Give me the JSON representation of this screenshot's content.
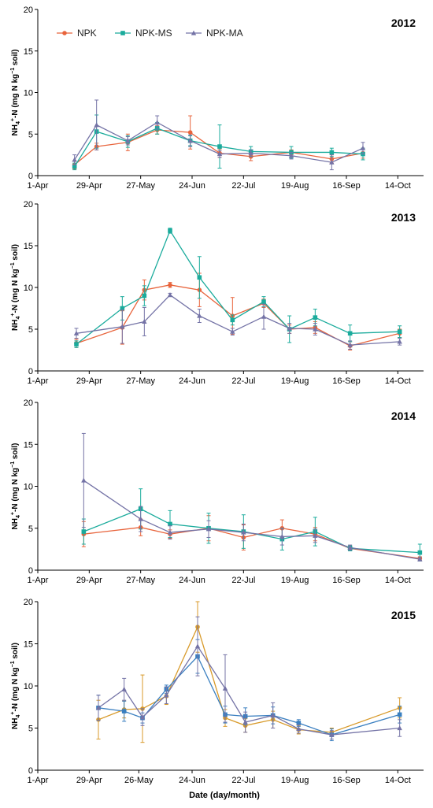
{
  "figure": {
    "xlabel": "Date (day/month)",
    "ylabel_main": "NH",
    "ylabel_sub": "4",
    "ylabel_sup": "+",
    "ylabel_mid": "-N (mg N kg",
    "ylabel_sup2": "−1",
    "ylabel_end": " soil)"
  },
  "legend": {
    "items": [
      {
        "name": "NPK",
        "color": "#e8643c",
        "marker": "circle"
      },
      {
        "name": "NPK-MS",
        "color": "#1aab9c",
        "marker": "square"
      },
      {
        "name": "NPK-MA",
        "color": "#7473a6",
        "marker": "triangle"
      }
    ]
  },
  "chart_data": [
    {
      "type": "line",
      "title": "2012",
      "xlabel": "",
      "ylabel": "NH4+-N (mg N kg−1 soil)",
      "ylim": [
        0,
        20
      ],
      "yticks": [
        0,
        5,
        10,
        15,
        20
      ],
      "xlim": [
        0,
        210
      ],
      "xticks": [
        {
          "x": 0,
          "label": "1-Apr"
        },
        {
          "x": 28,
          "label": "29-Apr"
        },
        {
          "x": 56,
          "label": "27-May"
        },
        {
          "x": 84,
          "label": "24-Jun"
        },
        {
          "x": 112,
          "label": "22-Jul"
        },
        {
          "x": 140,
          "label": "19-Aug"
        },
        {
          "x": 168,
          "label": "16-Sep"
        },
        {
          "x": 196,
          "label": "14-Oct"
        }
      ],
      "legend": true,
      "series": [
        {
          "name": "NPK",
          "color": "#e8643c",
          "marker": "circle",
          "x": [
            20,
            32,
            49,
            65,
            83,
            99,
            116,
            138,
            160,
            177
          ],
          "y": [
            1.3,
            3.5,
            4.0,
            5.5,
            5.2,
            2.7,
            2.3,
            2.8,
            2.0,
            2.7
          ],
          "err": [
            0.5,
            0.4,
            1.0,
            0.5,
            2.0,
            0.5,
            0.5,
            0.3,
            0.5,
            0.6
          ]
        },
        {
          "name": "NPK-MS",
          "color": "#1aab9c",
          "marker": "square",
          "x": [
            20,
            32,
            49,
            65,
            83,
            99,
            116,
            138,
            160,
            177
          ],
          "y": [
            1.1,
            5.3,
            4.1,
            5.7,
            4.2,
            3.5,
            2.9,
            2.8,
            2.8,
            2.6
          ],
          "err": [
            0.4,
            2.0,
            0.7,
            0.7,
            0.6,
            2.6,
            0.6,
            0.7,
            0.5,
            0.7
          ]
        },
        {
          "name": "NPK-MA",
          "color": "#7473a6",
          "marker": "triangle",
          "x": [
            20,
            32,
            49,
            65,
            83,
            99,
            116,
            138,
            160,
            177
          ],
          "y": [
            1.9,
            6.1,
            4.2,
            6.4,
            4.2,
            2.6,
            2.7,
            2.4,
            1.6,
            3.3
          ],
          "err": [
            0.6,
            3.0,
            0.5,
            0.8,
            0.7,
            0.4,
            0.4,
            0.4,
            0.9,
            0.7
          ]
        }
      ]
    },
    {
      "type": "line",
      "title": "2013",
      "xlabel": "",
      "ylabel": "NH4+-N (mg N kg−1 soil)",
      "ylim": [
        0,
        20
      ],
      "yticks": [
        0,
        5,
        10,
        15,
        20
      ],
      "xlim": [
        0,
        210
      ],
      "xticks": [
        {
          "x": 0,
          "label": "1-Apr"
        },
        {
          "x": 28,
          "label": "29-Apr"
        },
        {
          "x": 56,
          "label": "27-May"
        },
        {
          "x": 84,
          "label": "24-Jun"
        },
        {
          "x": 112,
          "label": "22-Jul"
        },
        {
          "x": 140,
          "label": "19-Aug"
        },
        {
          "x": 168,
          "label": "16-Sep"
        },
        {
          "x": 196,
          "label": "14-Oct"
        }
      ],
      "legend": false,
      "series": [
        {
          "name": "NPK",
          "color": "#e8643c",
          "marker": "circle",
          "x": [
            21,
            46,
            58,
            72,
            88,
            106,
            123,
            137,
            151,
            170,
            197
          ],
          "y": [
            3.3,
            5.2,
            9.7,
            10.3,
            9.7,
            6.6,
            8.1,
            5.0,
            5.2,
            3.0,
            4.5
          ],
          "err": [
            0.5,
            2.0,
            1.2,
            0.3,
            2.0,
            2.2,
            0.5,
            0.5,
            0.7,
            0.5,
            0.5
          ]
        },
        {
          "name": "NPK-MS",
          "color": "#1aab9c",
          "marker": "square",
          "x": [
            21,
            46,
            58,
            72,
            88,
            106,
            123,
            137,
            151,
            170,
            197
          ],
          "y": [
            3.2,
            7.5,
            9.0,
            16.8,
            11.2,
            6.1,
            8.3,
            5.0,
            6.4,
            4.5,
            4.7
          ],
          "err": [
            0.4,
            1.4,
            1.2,
            0.3,
            2.5,
            0.6,
            0.6,
            1.6,
            1.0,
            1.0,
            0.7
          ]
        },
        {
          "name": "NPK-MA",
          "color": "#7473a6",
          "marker": "triangle",
          "x": [
            21,
            46,
            58,
            72,
            88,
            106,
            123,
            137,
            151,
            170,
            197
          ],
          "y": [
            4.5,
            5.3,
            5.9,
            9.1,
            6.6,
            4.7,
            6.5,
            5.1,
            5.0,
            3.1,
            3.5
          ],
          "err": [
            0.6,
            2.0,
            1.7,
            0.2,
            0.8,
            0.4,
            1.5,
            0.6,
            0.7,
            0.5,
            0.4
          ]
        }
      ]
    },
    {
      "type": "line",
      "title": "2014",
      "xlabel": "",
      "ylabel": "NH4+-N (mg N kg−1 soil)",
      "ylim": [
        0,
        20
      ],
      "yticks": [
        0,
        5,
        10,
        15,
        20
      ],
      "xlim": [
        0,
        210
      ],
      "xticks": [
        {
          "x": 0,
          "label": "1-Apr"
        },
        {
          "x": 28,
          "label": "29-Apr"
        },
        {
          "x": 56,
          "label": "27-May"
        },
        {
          "x": 84,
          "label": "24-Jun"
        },
        {
          "x": 112,
          "label": "22-Jul"
        },
        {
          "x": 140,
          "label": "19-Aug"
        },
        {
          "x": 168,
          "label": "16-Sep"
        },
        {
          "x": 196,
          "label": "14-Oct"
        }
      ],
      "legend": false,
      "series": [
        {
          "name": "NPK",
          "color": "#e8643c",
          "marker": "circle",
          "x": [
            25,
            56,
            72,
            93,
            112,
            133,
            151,
            170,
            208
          ],
          "y": [
            4.3,
            5.1,
            4.3,
            5.0,
            3.9,
            5.0,
            4.3,
            2.6,
            1.4
          ],
          "err": [
            1.5,
            1.0,
            0.5,
            1.5,
            1.5,
            1.0,
            0.8,
            0.3,
            0.2
          ]
        },
        {
          "name": "NPK-MS",
          "color": "#1aab9c",
          "marker": "square",
          "x": [
            25,
            56,
            72,
            93,
            112,
            133,
            151,
            170,
            208
          ],
          "y": [
            4.6,
            7.3,
            5.5,
            5.0,
            4.6,
            3.7,
            4.6,
            2.6,
            2.1
          ],
          "err": [
            1.5,
            2.4,
            1.6,
            1.8,
            2.0,
            1.3,
            1.7,
            0.3,
            1.0
          ]
        },
        {
          "name": "NPK-MA",
          "color": "#7473a6",
          "marker": "triangle",
          "x": [
            25,
            56,
            72,
            93,
            112,
            133,
            151,
            170,
            208
          ],
          "y": [
            10.7,
            6.1,
            4.5,
            4.9,
            4.5,
            4.0,
            4.1,
            2.7,
            1.3
          ],
          "err": [
            5.6,
            1.5,
            0.8,
            1.0,
            1.0,
            1.0,
            0.8,
            0.3,
            0.2
          ]
        }
      ]
    },
    {
      "type": "line",
      "title": "2015",
      "xlabel": "Date (day/month)",
      "ylabel": "NH4+-N (mg N kg−1 soil)",
      "ylim": [
        0,
        20
      ],
      "yticks": [
        0,
        5,
        10,
        15,
        20
      ],
      "xlim": [
        0,
        210
      ],
      "xticks": [
        {
          "x": 0,
          "label": "1-Apr"
        },
        {
          "x": 28,
          "label": "29-Apr"
        },
        {
          "x": 55,
          "label": "26-May"
        },
        {
          "x": 84,
          "label": "24-Jun"
        },
        {
          "x": 112,
          "label": "22-Jul"
        },
        {
          "x": 140,
          "label": "19-Aug"
        },
        {
          "x": 168,
          "label": "16-Sep"
        },
        {
          "x": 196,
          "label": "14-Oct"
        }
      ],
      "legend": false,
      "series": [
        {
          "name": "NPK",
          "color": "#d89a2a",
          "marker": "circle",
          "x": [
            33,
            47,
            57,
            70,
            87,
            102,
            113,
            128,
            142,
            160,
            197
          ],
          "y": [
            6.0,
            7.2,
            7.3,
            8.8,
            17.0,
            6.2,
            5.3,
            6.0,
            4.8,
            4.5,
            7.4
          ],
          "err": [
            2.3,
            1.0,
            4.0,
            1.0,
            3.0,
            1.0,
            0.8,
            1.0,
            0.5,
            0.5,
            1.2
          ]
        },
        {
          "name": "NPK-MS",
          "color": "#3a7fc0",
          "marker": "square",
          "x": [
            33,
            47,
            57,
            70,
            87,
            102,
            113,
            128,
            142,
            160,
            197
          ],
          "y": [
            7.4,
            7.0,
            6.2,
            9.6,
            13.5,
            6.6,
            6.4,
            6.5,
            5.6,
            4.2,
            6.6
          ],
          "err": [
            1.5,
            1.2,
            0.6,
            0.5,
            2.0,
            1.0,
            1.0,
            1.0,
            0.4,
            0.7,
            1.0
          ]
        },
        {
          "name": "NPK-MA",
          "color": "#7473a6",
          "marker": "triangle",
          "x": [
            33,
            47,
            57,
            70,
            87,
            102,
            113,
            128,
            142,
            160,
            197
          ],
          "y": [
            7.4,
            9.6,
            6.3,
            8.9,
            14.7,
            9.7,
            5.7,
            6.5,
            4.9,
            4.2,
            5.0
          ],
          "err": [
            1.5,
            1.3,
            1.0,
            1.0,
            3.5,
            4.0,
            1.2,
            1.5,
            0.5,
            0.5,
            1.0
          ]
        }
      ]
    }
  ]
}
